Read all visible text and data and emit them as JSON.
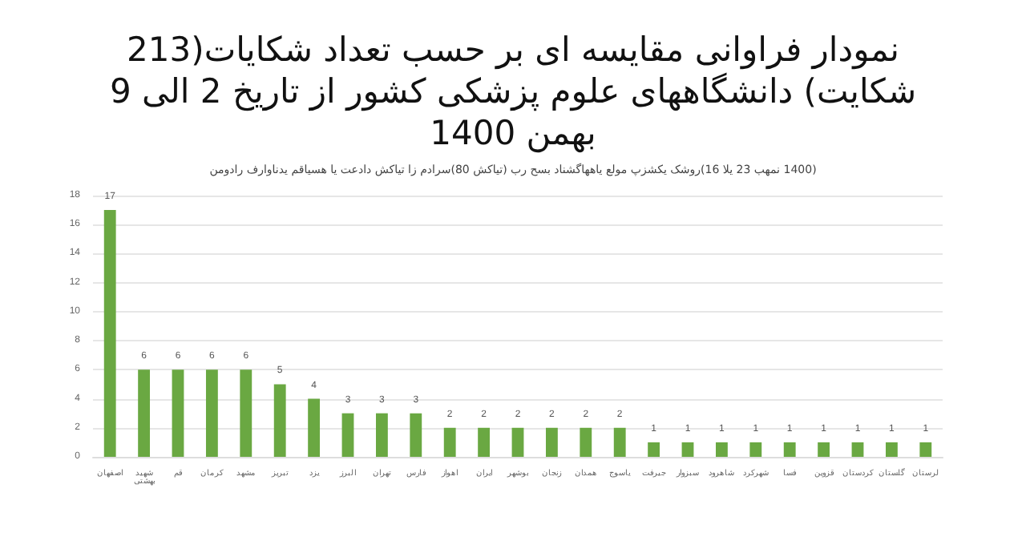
{
  "chart_data": {
    "type": "bar",
    "title": "نمودار فراوانی مقایسه ای بر حسب تعداد شکایات(213 شکایت) دانشگاههای علوم پزشکی کشور از تاریخ 2 الی 9 بهمن 1400",
    "subtitle": "(1400 نمهب 23 یلا 16)روشک یکشزپ مولع یاههاگشناد بسح رب (تیاکش 80)سرادم زا تیاکش دادعت یا هسیاقم یدناوارف رادومن",
    "categories": [
      "اصفهان",
      "شهید بهشتی",
      "قم",
      "کرمان",
      "مشهد",
      "تبریز",
      "یزد",
      "البرز",
      "تهران",
      "فارس",
      "اهواز",
      "ایران",
      "بوشهر",
      "زنجان",
      "همدان",
      "یاسوج",
      "جیرفت",
      "سبزوار",
      "شاهرود",
      "شهرکرد",
      "فسا",
      "قزوین",
      "کردستان",
      "گلستان",
      "لرستان"
    ],
    "values": [
      17,
      6,
      6,
      6,
      6,
      5,
      4,
      3,
      3,
      3,
      2,
      2,
      2,
      2,
      2,
      2,
      1,
      1,
      1,
      1,
      1,
      1,
      1,
      1,
      1
    ],
    "color": "#6aa842",
    "ylim": [
      0,
      18
    ],
    "yticks": [
      0,
      2,
      4,
      6,
      8,
      10,
      12,
      14,
      16,
      18
    ],
    "grid": "y",
    "data_labels": true
  }
}
